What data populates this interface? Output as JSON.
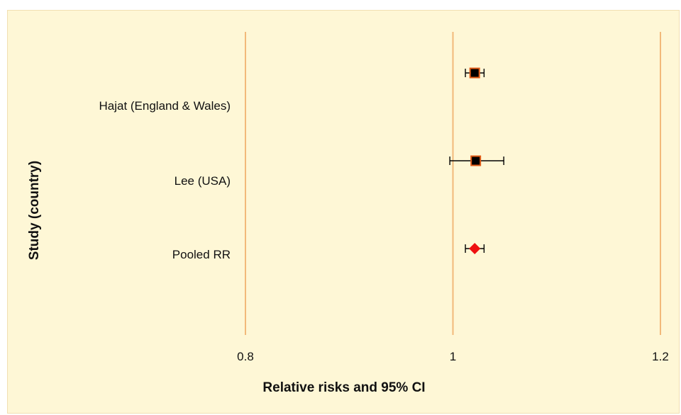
{
  "chart_data": {
    "type": "scatter",
    "subtype": "forest-plot",
    "xlabel": "Relative risks and 95% CI",
    "ylabel": "Study (country)",
    "xlim": [
      0.6,
      1.2
    ],
    "x_ticks": [
      {
        "value": 0.8,
        "label": "0.8"
      },
      {
        "value": 1.0,
        "label": "1"
      },
      {
        "value": 1.2,
        "label": "1.2"
      }
    ],
    "grid": "vertical",
    "legend": "none",
    "categories": [
      "Hajat (England & Wales)",
      "Lee (USA)",
      "Pooled RR"
    ],
    "points": [
      {
        "study": "Hajat (England & Wales)",
        "rr": 1.021,
        "ci_low": 1.012,
        "ci_high": 1.03,
        "marker": "square"
      },
      {
        "study": "Lee (USA)",
        "rr": 1.022,
        "ci_low": 0.997,
        "ci_high": 1.049,
        "marker": "square"
      },
      {
        "study": "Pooled RR",
        "rr": 1.021,
        "ci_low": 1.012,
        "ci_high": 1.03,
        "marker": "diamond"
      }
    ]
  },
  "colors": {
    "background": "#fef7d6",
    "gridline": "#f2b97a",
    "square_fill": "#000000",
    "square_edge": "#e05a16",
    "diamond_fill": "#ee1111",
    "errorbar": "#000000"
  }
}
